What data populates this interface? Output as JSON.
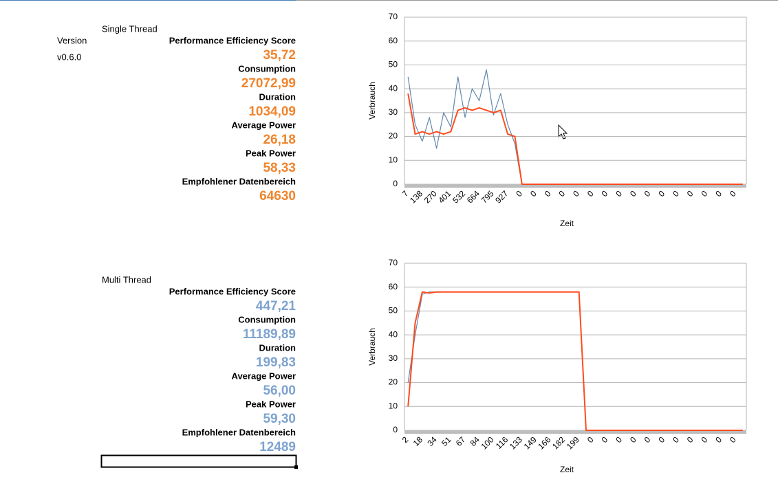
{
  "version": {
    "label": "Version",
    "value": "v0.6.0"
  },
  "sections": [
    {
      "title": "Single Thread",
      "color": "#f0852d",
      "metrics": [
        {
          "label": "Performance Efficiency Score",
          "value": "35,72"
        },
        {
          "label": "Consumption",
          "value": "27072,99"
        },
        {
          "label": "Duration",
          "value": "1034,09"
        },
        {
          "label": "Average Power",
          "value": "26,18"
        },
        {
          "label": "Peak Power",
          "value": "58,33"
        },
        {
          "label": "Empfohlener Datenbereich",
          "value": "64630"
        }
      ]
    },
    {
      "title": "Multi Thread",
      "color": "#7ea3cf",
      "metrics": [
        {
          "label": "Performance Efficiency Score",
          "value": "447,21"
        },
        {
          "label": "Consumption",
          "value": "11189,89"
        },
        {
          "label": "Duration",
          "value": "199,83"
        },
        {
          "label": "Average Power",
          "value": "56,00"
        },
        {
          "label": "Peak Power",
          "value": "59,30"
        },
        {
          "label": "Empfohlener Datenbereich",
          "value": "12489"
        }
      ]
    }
  ],
  "chart_data": [
    {
      "type": "line",
      "y_label": "Verbrauch",
      "x_label": "Zeit",
      "categories": [
        "7",
        null,
        "138",
        null,
        "270",
        null,
        "401",
        null,
        "532",
        null,
        "664",
        null,
        "795",
        null,
        "927",
        null,
        "0",
        null,
        "0",
        null,
        "0",
        null,
        "0",
        null,
        "0",
        null,
        "0",
        null,
        "0",
        null,
        "0",
        null,
        "0",
        null,
        "0",
        null,
        "0",
        null,
        "0",
        null,
        "0",
        null,
        "0",
        null,
        "0",
        null,
        "0",
        null
      ],
      "ylim": [
        0,
        70
      ],
      "yticks": [
        0,
        10,
        20,
        30,
        40,
        50,
        60,
        70
      ],
      "grid": true,
      "series": [
        {
          "color": "#2f5f91",
          "values": [
            45,
            25,
            18,
            28,
            15,
            30,
            24,
            45,
            28,
            40,
            35,
            48,
            29,
            38,
            25,
            17,
            0,
            0,
            0,
            0,
            0,
            0,
            0,
            0,
            0,
            0,
            0,
            0,
            0,
            0,
            0,
            0,
            0,
            0,
            0,
            0,
            0,
            0,
            0,
            0,
            0,
            0,
            0,
            0,
            0,
            0,
            0,
            0
          ]
        },
        {
          "color": "#ff4a1c",
          "values": [
            38,
            21,
            22,
            21,
            22,
            21,
            22,
            31,
            32,
            31,
            32,
            31,
            30,
            31,
            21,
            20,
            0,
            0,
            0,
            0,
            0,
            0,
            0,
            0,
            0,
            0,
            0,
            0,
            0,
            0,
            0,
            0,
            0,
            0,
            0,
            0,
            0,
            0,
            0,
            0,
            0,
            0,
            0,
            0,
            0,
            0,
            0,
            0
          ]
        }
      ]
    },
    {
      "type": "line",
      "y_label": "Verbrauch",
      "x_label": "Zeit",
      "categories": [
        "2",
        null,
        "18",
        null,
        "34",
        null,
        "51",
        null,
        "67",
        null,
        "84",
        null,
        "100",
        null,
        "116",
        null,
        "133",
        null,
        "149",
        null,
        "166",
        null,
        "182",
        null,
        "199",
        null,
        "0",
        null,
        "0",
        null,
        "0",
        null,
        "0",
        null,
        "0",
        null,
        "0",
        null,
        "0",
        null,
        "0",
        null,
        "0",
        null,
        "0",
        null,
        "0",
        null
      ],
      "ylim": [
        0,
        70
      ],
      "yticks": [
        0,
        10,
        20,
        30,
        40,
        50,
        60,
        70
      ],
      "grid": true,
      "series": [
        {
          "color": "#2f5f91",
          "values": [
            20,
            40,
            57,
            58,
            58,
            58,
            58,
            58,
            58,
            58,
            58,
            58,
            58,
            58,
            58,
            58,
            58,
            58,
            58,
            58,
            58,
            58,
            58,
            58,
            58,
            0,
            0,
            0,
            0,
            0,
            0,
            0,
            0,
            0,
            0,
            0,
            0,
            0,
            0,
            0,
            0,
            0,
            0,
            0,
            0,
            0,
            0,
            0
          ]
        },
        {
          "color": "#ff4a1c",
          "values": [
            10,
            45,
            58,
            57.5,
            58,
            58,
            58,
            58,
            58,
            58,
            58,
            58,
            58,
            58,
            58,
            58,
            58,
            58,
            58,
            58,
            58,
            58,
            58,
            58,
            58,
            0,
            0,
            0,
            0,
            0,
            0,
            0,
            0,
            0,
            0,
            0,
            0,
            0,
            0,
            0,
            0,
            0,
            0,
            0,
            0,
            0,
            0,
            0
          ]
        }
      ]
    }
  ]
}
